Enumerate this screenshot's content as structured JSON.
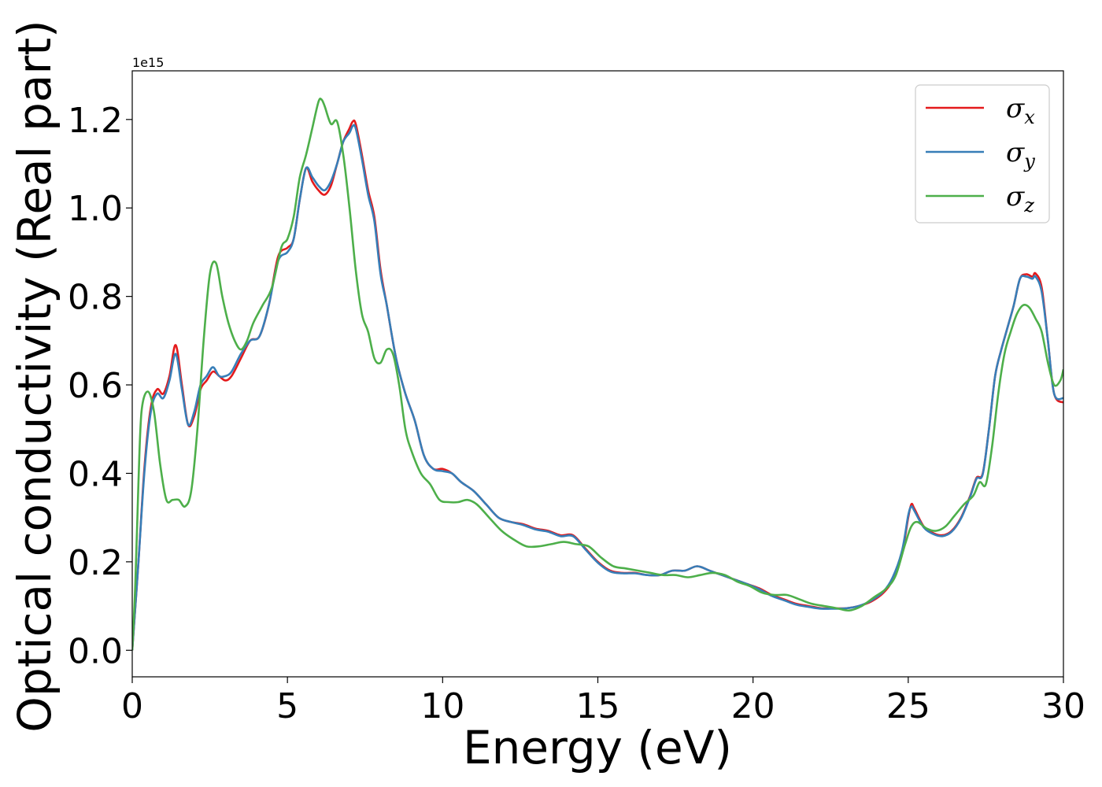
{
  "chart_data": {
    "type": "line",
    "title": "",
    "xlabel": "Energy (eV)",
    "ylabel": "Optical conductivity (Real part)",
    "y_offset_text": "1e15",
    "xlim": [
      0,
      30
    ],
    "ylim": [
      -0.06,
      1.31
    ],
    "xticks": [
      0,
      5,
      10,
      15,
      20,
      25,
      30
    ],
    "xtick_labels": [
      "0",
      "5",
      "10",
      "15",
      "20",
      "25",
      "30"
    ],
    "yticks": [
      0.0,
      0.2,
      0.4,
      0.6,
      0.8,
      1.0,
      1.2
    ],
    "ytick_labels": [
      "0.0",
      "0.2",
      "0.4",
      "0.6",
      "0.8",
      "1.0",
      "1.2"
    ],
    "grid": false,
    "legend_position": "top-right",
    "series": [
      {
        "name": "σx",
        "legend_base": "σ",
        "legend_sub": "x",
        "color": "#e41a1c",
        "x": [
          0,
          0.2,
          0.4,
          0.6,
          0.8,
          1.0,
          1.2,
          1.4,
          1.6,
          1.8,
          2.0,
          2.2,
          2.4,
          2.6,
          2.8,
          3.0,
          3.2,
          3.5,
          3.8,
          4.1,
          4.4,
          4.7,
          5.0,
          5.2,
          5.4,
          5.6,
          5.8,
          6.0,
          6.2,
          6.4,
          6.6,
          6.8,
          7.0,
          7.1,
          7.2,
          7.4,
          7.6,
          7.8,
          8.0,
          8.2,
          8.5,
          8.8,
          9.1,
          9.4,
          9.7,
          10.0,
          10.3,
          10.6,
          11.0,
          11.4,
          11.8,
          12.2,
          12.6,
          13.0,
          13.4,
          13.8,
          14.2,
          14.6,
          15.0,
          15.4,
          15.8,
          16.2,
          16.6,
          17.0,
          17.4,
          17.8,
          18.2,
          18.6,
          19.0,
          19.4,
          19.8,
          20.2,
          20.6,
          21.0,
          21.4,
          21.8,
          22.2,
          22.6,
          23.0,
          23.4,
          23.8,
          24.2,
          24.5,
          24.8,
          25.0,
          25.1,
          25.2,
          25.5,
          25.8,
          26.1,
          26.4,
          26.7,
          27.0,
          27.2,
          27.4,
          27.6,
          27.8,
          28.0,
          28.2,
          28.4,
          28.6,
          28.8,
          29.0,
          29.1,
          29.3,
          29.5,
          29.7,
          30.0
        ],
        "y": [
          0.0,
          0.2,
          0.42,
          0.55,
          0.59,
          0.58,
          0.62,
          0.69,
          0.6,
          0.51,
          0.53,
          0.59,
          0.61,
          0.63,
          0.62,
          0.61,
          0.62,
          0.66,
          0.7,
          0.71,
          0.78,
          0.89,
          0.91,
          0.93,
          1.02,
          1.09,
          1.06,
          1.04,
          1.03,
          1.05,
          1.1,
          1.15,
          1.18,
          1.195,
          1.19,
          1.12,
          1.04,
          0.98,
          0.86,
          0.78,
          0.66,
          0.58,
          0.52,
          0.44,
          0.41,
          0.41,
          0.4,
          0.38,
          0.36,
          0.33,
          0.3,
          0.29,
          0.285,
          0.275,
          0.27,
          0.26,
          0.26,
          0.23,
          0.2,
          0.18,
          0.175,
          0.175,
          0.17,
          0.17,
          0.18,
          0.18,
          0.19,
          0.18,
          0.17,
          0.16,
          0.15,
          0.14,
          0.125,
          0.115,
          0.105,
          0.1,
          0.095,
          0.095,
          0.095,
          0.1,
          0.11,
          0.13,
          0.16,
          0.22,
          0.3,
          0.33,
          0.32,
          0.28,
          0.265,
          0.26,
          0.27,
          0.3,
          0.35,
          0.39,
          0.4,
          0.5,
          0.62,
          0.68,
          0.73,
          0.78,
          0.84,
          0.85,
          0.845,
          0.852,
          0.82,
          0.7,
          0.58,
          0.56
        ]
      },
      {
        "name": "σy",
        "legend_base": "σ",
        "legend_sub": "y",
        "color": "#377eb8",
        "x": [
          0,
          0.2,
          0.4,
          0.6,
          0.8,
          1.0,
          1.2,
          1.4,
          1.6,
          1.8,
          2.0,
          2.2,
          2.4,
          2.6,
          2.8,
          3.0,
          3.2,
          3.5,
          3.8,
          4.1,
          4.4,
          4.7,
          5.0,
          5.2,
          5.4,
          5.6,
          5.8,
          6.0,
          6.2,
          6.4,
          6.6,
          6.8,
          7.0,
          7.1,
          7.2,
          7.4,
          7.6,
          7.8,
          8.0,
          8.2,
          8.5,
          8.8,
          9.1,
          9.4,
          9.7,
          10.0,
          10.3,
          10.6,
          11.0,
          11.4,
          11.8,
          12.2,
          12.6,
          13.0,
          13.4,
          13.8,
          14.2,
          14.6,
          15.0,
          15.4,
          15.8,
          16.2,
          16.6,
          17.0,
          17.4,
          17.8,
          18.2,
          18.6,
          19.0,
          19.4,
          19.8,
          20.2,
          20.6,
          21.0,
          21.4,
          21.8,
          22.2,
          22.6,
          23.0,
          23.4,
          23.8,
          24.2,
          24.5,
          24.8,
          25.0,
          25.1,
          25.2,
          25.5,
          25.8,
          26.1,
          26.4,
          26.7,
          27.0,
          27.2,
          27.4,
          27.6,
          27.8,
          28.0,
          28.2,
          28.4,
          28.6,
          28.8,
          29.0,
          29.1,
          29.3,
          29.5,
          29.7,
          30.0
        ],
        "y": [
          0.0,
          0.2,
          0.41,
          0.54,
          0.58,
          0.57,
          0.61,
          0.67,
          0.59,
          0.51,
          0.54,
          0.6,
          0.62,
          0.64,
          0.62,
          0.62,
          0.63,
          0.67,
          0.7,
          0.71,
          0.78,
          0.88,
          0.9,
          0.93,
          1.02,
          1.09,
          1.07,
          1.05,
          1.04,
          1.06,
          1.1,
          1.15,
          1.17,
          1.185,
          1.18,
          1.11,
          1.03,
          0.97,
          0.85,
          0.78,
          0.66,
          0.58,
          0.52,
          0.44,
          0.41,
          0.405,
          0.4,
          0.38,
          0.36,
          0.33,
          0.3,
          0.29,
          0.283,
          0.273,
          0.268,
          0.258,
          0.258,
          0.228,
          0.198,
          0.178,
          0.174,
          0.174,
          0.17,
          0.17,
          0.18,
          0.18,
          0.19,
          0.18,
          0.17,
          0.16,
          0.15,
          0.138,
          0.123,
          0.113,
          0.103,
          0.098,
          0.094,
          0.094,
          0.095,
          0.1,
          0.112,
          0.133,
          0.165,
          0.225,
          0.305,
          0.325,
          0.315,
          0.278,
          0.263,
          0.258,
          0.268,
          0.298,
          0.348,
          0.388,
          0.398,
          0.5,
          0.62,
          0.68,
          0.73,
          0.78,
          0.84,
          0.845,
          0.84,
          0.845,
          0.81,
          0.7,
          0.58,
          0.57
        ]
      },
      {
        "name": "σz",
        "legend_base": "σ",
        "legend_sub": "z",
        "color": "#4daf4a",
        "x": [
          0,
          0.1,
          0.2,
          0.3,
          0.5,
          0.7,
          0.9,
          1.1,
          1.3,
          1.5,
          1.7,
          1.9,
          2.1,
          2.3,
          2.5,
          2.7,
          2.9,
          3.1,
          3.3,
          3.5,
          3.7,
          3.9,
          4.2,
          4.5,
          4.8,
          5.0,
          5.2,
          5.4,
          5.6,
          5.8,
          6.0,
          6.1,
          6.2,
          6.4,
          6.6,
          6.8,
          7.0,
          7.2,
          7.4,
          7.6,
          7.8,
          8.0,
          8.2,
          8.4,
          8.6,
          8.8,
          9.0,
          9.3,
          9.6,
          9.9,
          10.2,
          10.5,
          10.8,
          11.1,
          11.5,
          11.9,
          12.3,
          12.7,
          13.1,
          13.5,
          13.9,
          14.3,
          14.7,
          15.1,
          15.5,
          15.9,
          16.3,
          16.7,
          17.1,
          17.5,
          17.9,
          18.3,
          18.7,
          19.1,
          19.5,
          19.9,
          20.3,
          20.7,
          21.1,
          21.5,
          21.9,
          22.3,
          22.7,
          23.1,
          23.5,
          23.9,
          24.3,
          24.6,
          24.9,
          25.1,
          25.3,
          25.6,
          25.9,
          26.2,
          26.5,
          26.8,
          27.1,
          27.3,
          27.5,
          27.7,
          27.9,
          28.1,
          28.3,
          28.5,
          28.7,
          28.9,
          29.1,
          29.3,
          29.5,
          29.7,
          29.9,
          30.0
        ],
        "y": [
          0.0,
          0.15,
          0.38,
          0.54,
          0.585,
          0.54,
          0.42,
          0.34,
          0.34,
          0.34,
          0.325,
          0.36,
          0.5,
          0.7,
          0.85,
          0.875,
          0.8,
          0.74,
          0.7,
          0.68,
          0.7,
          0.74,
          0.78,
          0.82,
          0.91,
          0.93,
          0.98,
          1.07,
          1.12,
          1.18,
          1.24,
          1.245,
          1.23,
          1.19,
          1.195,
          1.12,
          1.0,
          0.86,
          0.76,
          0.72,
          0.66,
          0.65,
          0.68,
          0.67,
          0.6,
          0.5,
          0.45,
          0.4,
          0.375,
          0.34,
          0.335,
          0.335,
          0.34,
          0.33,
          0.3,
          0.27,
          0.25,
          0.235,
          0.235,
          0.24,
          0.245,
          0.24,
          0.235,
          0.21,
          0.19,
          0.185,
          0.18,
          0.175,
          0.17,
          0.17,
          0.165,
          0.17,
          0.175,
          0.17,
          0.155,
          0.145,
          0.13,
          0.125,
          0.125,
          0.115,
          0.105,
          0.1,
          0.095,
          0.09,
          0.1,
          0.12,
          0.14,
          0.17,
          0.24,
          0.28,
          0.29,
          0.275,
          0.27,
          0.28,
          0.305,
          0.33,
          0.35,
          0.38,
          0.375,
          0.46,
          0.58,
          0.67,
          0.72,
          0.76,
          0.78,
          0.775,
          0.75,
          0.72,
          0.65,
          0.6,
          0.61,
          0.635
        ]
      }
    ]
  }
}
